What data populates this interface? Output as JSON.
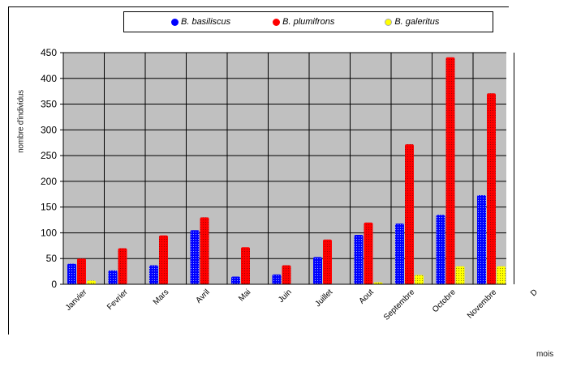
{
  "chart_data": {
    "type": "bar",
    "categories": [
      "Janvier",
      "Fevrier",
      "Mars",
      "Avril",
      "Mai",
      "Juin",
      "Juillet",
      "Aout",
      "Septembre",
      "Octobre",
      "Novembre",
      "D"
    ],
    "series": [
      {
        "name": "B. basiliscus",
        "color": "#0000ff",
        "values": [
          40,
          27,
          37,
          105,
          15,
          19,
          53,
          96,
          118,
          135,
          173,
          null
        ]
      },
      {
        "name": "B. plumifrons",
        "color": "#ff0000",
        "values": [
          50,
          70,
          95,
          130,
          72,
          37,
          87,
          120,
          272,
          441,
          371,
          null
        ]
      },
      {
        "name": "B. galeritus",
        "color": "#ffff00",
        "values": [
          7,
          0,
          0,
          0,
          0,
          0,
          0,
          4,
          18,
          35,
          35,
          null
        ]
      }
    ],
    "yticks": [
      0,
      50,
      100,
      150,
      200,
      250,
      300,
      350,
      400,
      450
    ],
    "ylim": [
      0,
      450
    ],
    "ylabel": "nombre d'individus",
    "xlabel": "mois",
    "grid": true,
    "legend": "top"
  }
}
